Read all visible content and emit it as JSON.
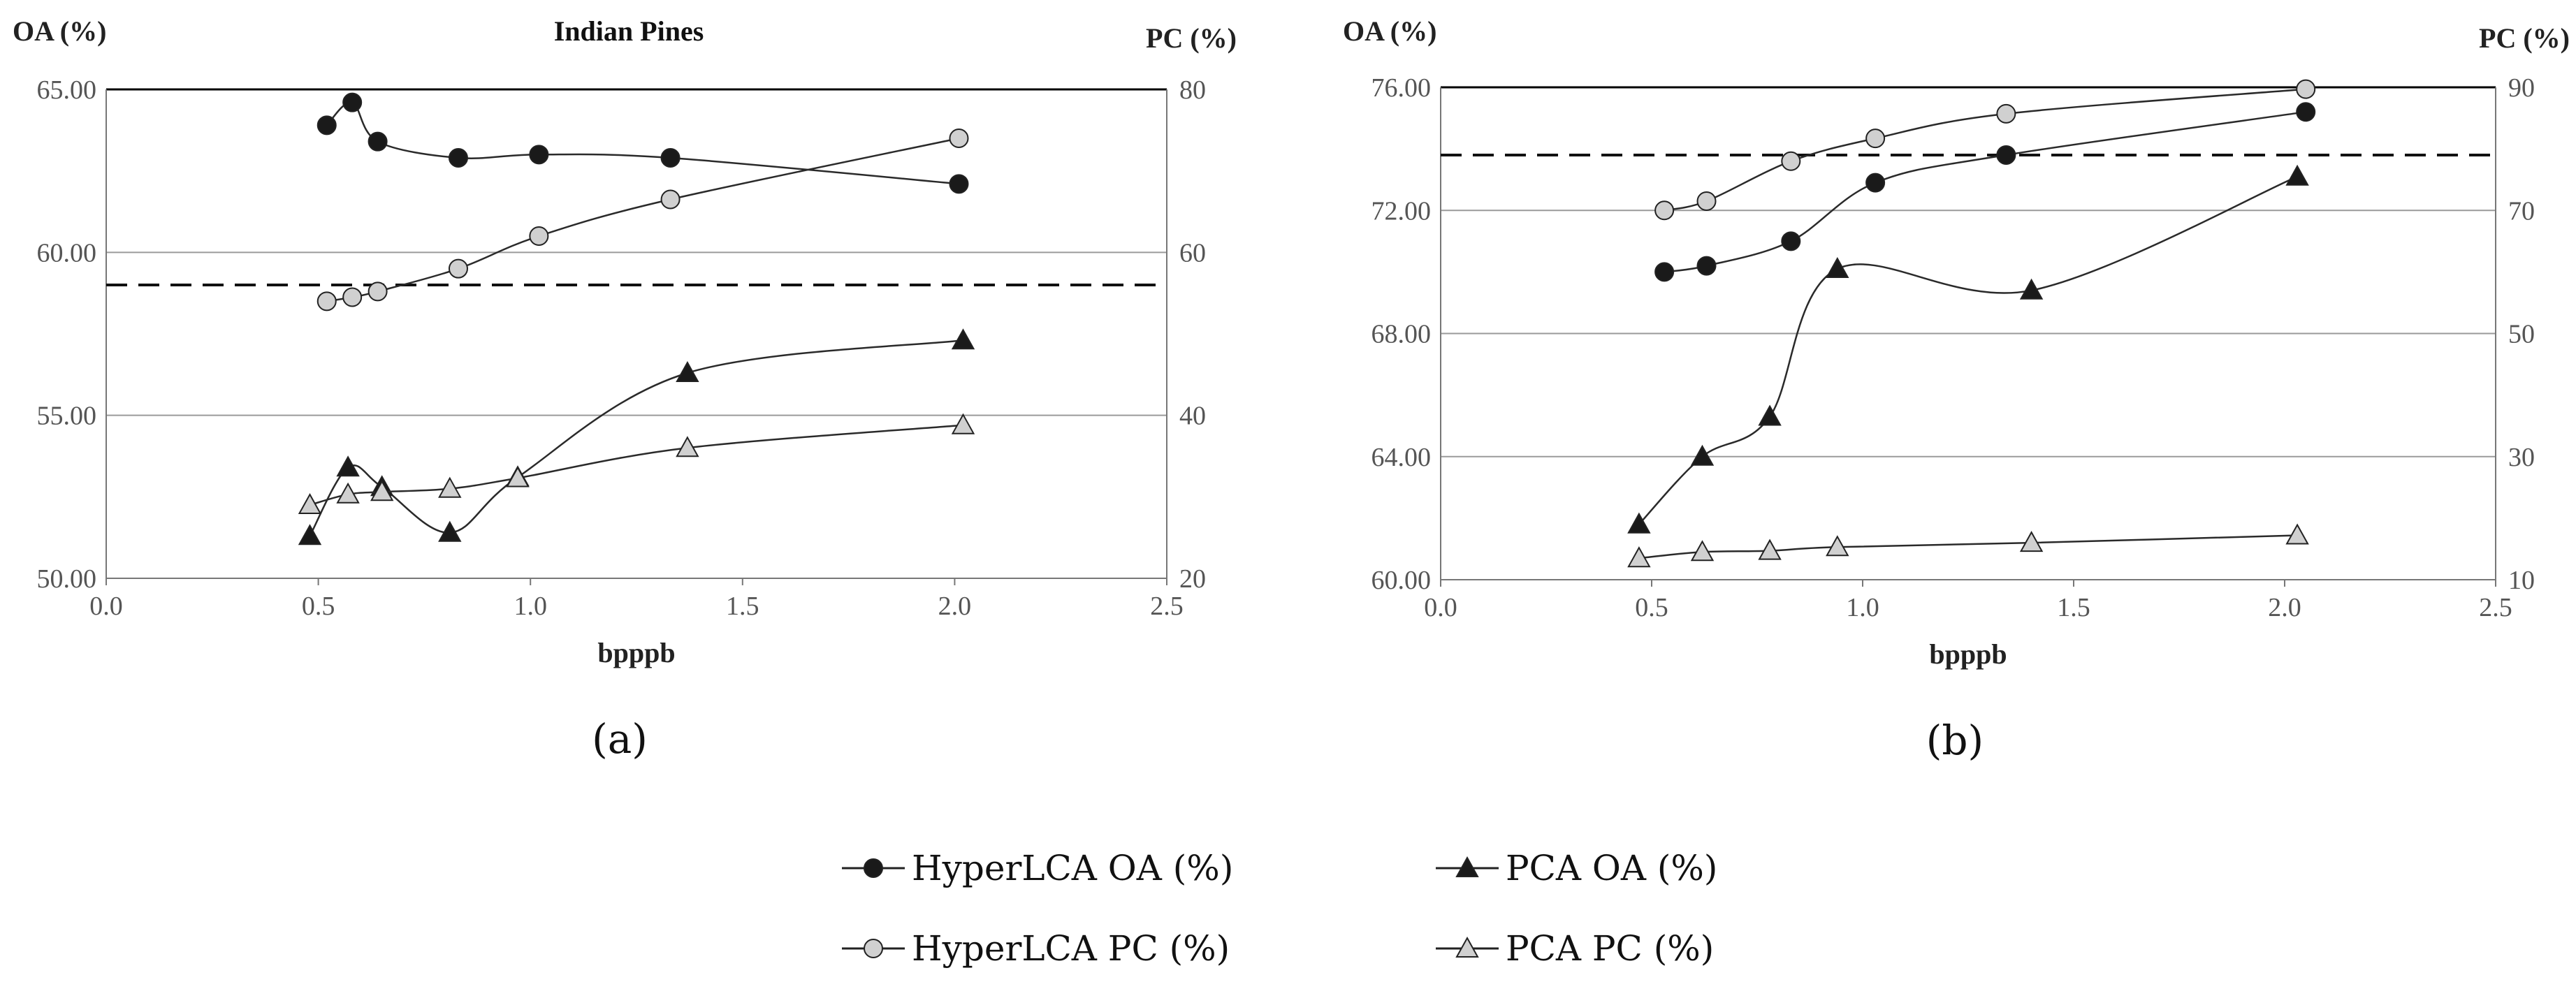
{
  "chart_data": [
    {
      "type": "line",
      "title": "Indian Pines",
      "panel_label": "(a)",
      "xlabel": "bpppb",
      "ylabel": "OA (%)",
      "y2label": "PC (%)",
      "xlim": [
        0.0,
        2.5
      ],
      "ylim": [
        50.0,
        65.0
      ],
      "y2lim": [
        20,
        80
      ],
      "xticks": [
        "0.0",
        "0.5",
        "1.0",
        "1.5",
        "2.0",
        "2.5"
      ],
      "yticks": [
        "50.00",
        "55.00",
        "60.00",
        "65.00"
      ],
      "y2ticks": [
        "20",
        "40",
        "60",
        "80"
      ],
      "reference_line_oa": 59.0,
      "series": [
        {
          "name": "HyperLCA OA (%)",
          "axis": "left",
          "marker": "circle",
          "fill": "#1a1a1a",
          "x": [
            0.52,
            0.58,
            0.64,
            0.83,
            1.02,
            1.33,
            2.01
          ],
          "values": [
            63.9,
            64.6,
            63.4,
            62.9,
            63.0,
            62.9,
            62.1
          ]
        },
        {
          "name": "HyperLCA PC (%)",
          "axis": "right",
          "marker": "circle",
          "fill": "#d0d0d0",
          "x": [
            0.52,
            0.58,
            0.64,
            0.83,
            1.02,
            1.33,
            2.01
          ],
          "values": [
            54,
            54.5,
            55.2,
            58,
            62,
            66.5,
            74
          ]
        },
        {
          "name": "PCA OA (%)",
          "axis": "left",
          "marker": "triangle",
          "fill": "#1a1a1a",
          "x": [
            0.48,
            0.57,
            0.65,
            0.81,
            0.97,
            1.37,
            2.02
          ],
          "values": [
            51.3,
            53.4,
            52.8,
            51.4,
            53.1,
            56.3,
            57.3
          ]
        },
        {
          "name": "PCA PC (%)",
          "axis": "right",
          "marker": "triangle",
          "fill": "#d0d0d0",
          "x": [
            0.48,
            0.57,
            0.65,
            0.81,
            0.97,
            1.37,
            2.02
          ],
          "values": [
            29,
            30.3,
            30.6,
            31,
            32.3,
            36,
            38.8
          ]
        }
      ]
    },
    {
      "type": "line",
      "title": "",
      "panel_label": "(b)",
      "xlabel": "bpppb",
      "ylabel": "OA (%)",
      "y2label": "PC (%)",
      "xlim": [
        0.0,
        2.5
      ],
      "ylim": [
        60.0,
        76.0
      ],
      "y2lim": [
        10,
        90
      ],
      "xticks": [
        "0.0",
        "0.5",
        "1.0",
        "1.5",
        "2.0",
        "2.5"
      ],
      "yticks": [
        "60.00",
        "64.00",
        "68.00",
        "72.00",
        "76.00"
      ],
      "y2ticks": [
        "10",
        "30",
        "50",
        "70",
        "90"
      ],
      "reference_line_oa": 73.8,
      "series": [
        {
          "name": "HyperLCA OA (%)",
          "axis": "left",
          "marker": "circle",
          "fill": "#1a1a1a",
          "x": [
            0.53,
            0.63,
            0.83,
            1.03,
            1.34,
            2.05
          ],
          "values": [
            70.0,
            70.2,
            71.0,
            72.9,
            73.8,
            75.2
          ]
        },
        {
          "name": "HyperLCA PC (%)",
          "axis": "right",
          "marker": "circle",
          "fill": "#d0d0d0",
          "x": [
            0.53,
            0.63,
            0.83,
            1.03,
            1.34,
            2.05
          ],
          "values": [
            70,
            71.5,
            78,
            81.7,
            85.7,
            89.7
          ]
        },
        {
          "name": "PCA OA (%)",
          "axis": "left",
          "marker": "triangle",
          "fill": "#1a1a1a",
          "x": [
            0.47,
            0.62,
            0.78,
            0.94,
            1.4,
            2.03
          ],
          "values": [
            61.8,
            64.0,
            65.3,
            70.1,
            69.4,
            73.1
          ]
        },
        {
          "name": "PCA PC (%)",
          "axis": "right",
          "marker": "triangle",
          "fill": "#d0d0d0",
          "x": [
            0.47,
            0.62,
            0.78,
            0.94,
            1.4,
            2.03
          ],
          "values": [
            13.5,
            14.5,
            14.7,
            15.3,
            16,
            17.2
          ]
        }
      ]
    }
  ],
  "legend": [
    {
      "label": "HyperLCA OA (%)",
      "marker": "circle",
      "fill": "#1a1a1a"
    },
    {
      "label": "PCA OA (%)",
      "marker": "triangle",
      "fill": "#1a1a1a"
    },
    {
      "label": "HyperLCA PC (%)",
      "marker": "circle",
      "fill": "#d0d0d0"
    },
    {
      "label": "PCA PC (%)",
      "marker": "triangle",
      "fill": "#d0d0d0"
    }
  ]
}
